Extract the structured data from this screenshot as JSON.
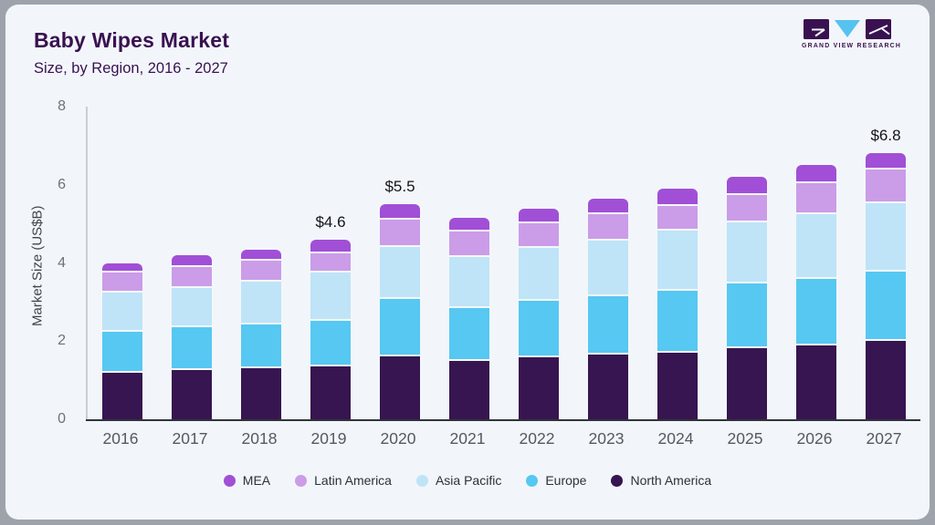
{
  "header": {
    "title": "Baby Wipes Market",
    "subtitle": "Size, by Region, 2016 - 2027",
    "logo_text": "GRAND VIEW RESEARCH"
  },
  "chart_data": {
    "type": "bar",
    "stacked": true,
    "title": "Baby Wipes Market",
    "subtitle": "Size, by Region, 2016 - 2027",
    "xlabel": "",
    "ylabel": "Market Size (US$B)",
    "ylim": [
      0,
      8
    ],
    "yticks": [
      0,
      2,
      4,
      6,
      8
    ],
    "grid": false,
    "legend_position": "bottom",
    "categories": [
      "2016",
      "2017",
      "2018",
      "2019",
      "2020",
      "2021",
      "2022",
      "2023",
      "2024",
      "2025",
      "2026",
      "2027"
    ],
    "series": [
      {
        "name": "North America",
        "color": "#371550",
        "values": [
          1.2,
          1.25,
          1.3,
          1.35,
          1.6,
          1.5,
          1.58,
          1.65,
          1.7,
          1.82,
          1.9,
          2.0
        ]
      },
      {
        "name": "Europe",
        "color": "#56C8F2",
        "values": [
          1.05,
          1.1,
          1.12,
          1.18,
          1.47,
          1.35,
          1.45,
          1.5,
          1.58,
          1.65,
          1.7,
          1.79
        ]
      },
      {
        "name": "Asia Pacific",
        "color": "#BFE4F7",
        "values": [
          1.0,
          1.0,
          1.1,
          1.22,
          1.35,
          1.3,
          1.35,
          1.42,
          1.55,
          1.56,
          1.65,
          1.74
        ]
      },
      {
        "name": "Latin America",
        "color": "#CB9CE8",
        "values": [
          0.5,
          0.55,
          0.53,
          0.5,
          0.68,
          0.65,
          0.64,
          0.68,
          0.62,
          0.71,
          0.8,
          0.86
        ]
      },
      {
        "name": "MEA",
        "color": "#A14FD6",
        "values": [
          0.25,
          0.3,
          0.3,
          0.35,
          0.4,
          0.35,
          0.38,
          0.4,
          0.45,
          0.46,
          0.45,
          0.41
        ]
      }
    ],
    "totals": [
      4.0,
      4.2,
      4.35,
      4.6,
      5.5,
      5.15,
      5.4,
      5.65,
      5.9,
      6.2,
      6.5,
      6.8
    ],
    "annotations": [
      "",
      "",
      "",
      "$4.6",
      "$5.5",
      "",
      "",
      "",
      "",
      "",
      "",
      "$6.8"
    ],
    "legend": [
      "MEA",
      "Latin America",
      "Asia Pacific",
      "Europe",
      "North America"
    ]
  },
  "colors": {
    "card_background": "#F2F6FA",
    "page_background": "#9EA3AB",
    "title_text": "#3A1150",
    "axis_baseline": "#30343B",
    "y_axis_line": "#C9CED5",
    "tick_text": "#6C727A",
    "category_text": "#55595F",
    "legend_text": "#2C313B",
    "annotation_text": "#121419",
    "logo_triangle": "#56C2EE"
  }
}
